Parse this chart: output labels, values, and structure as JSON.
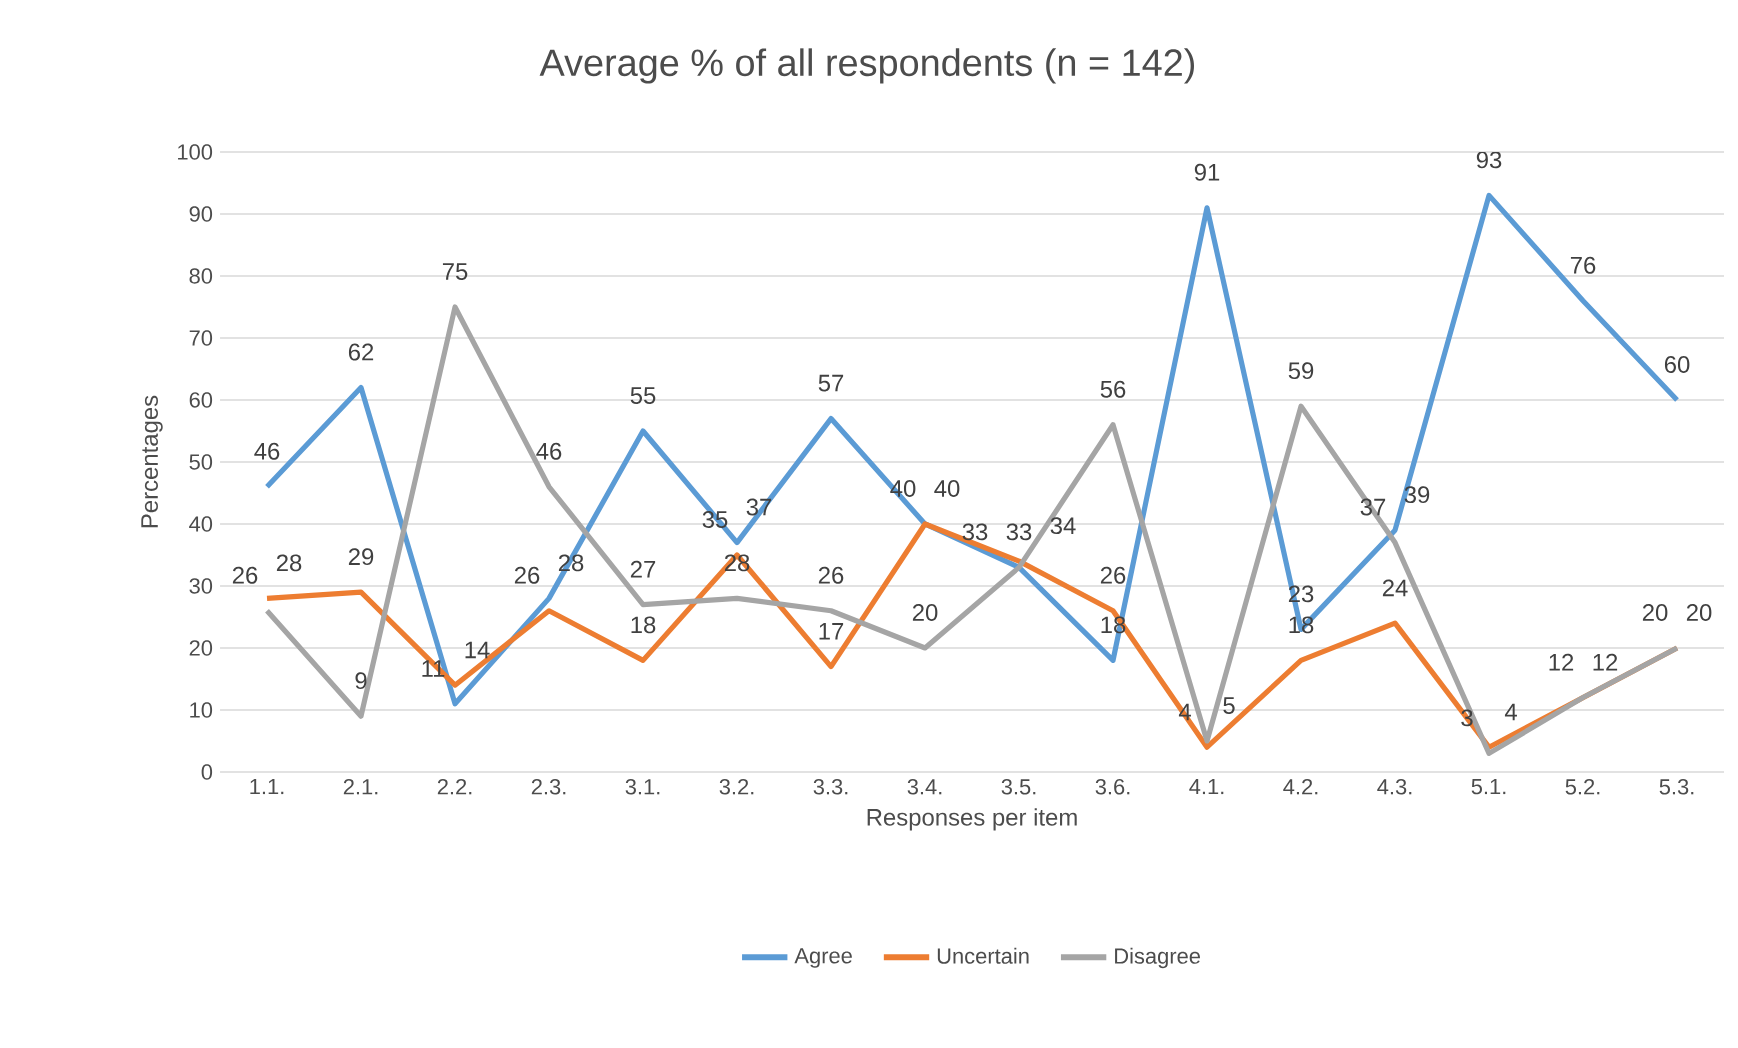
{
  "chart_data": {
    "type": "line",
    "title": "Average % of all respondents (n = 142)",
    "xlabel": "Responses per item",
    "ylabel": "Percentages",
    "categories": [
      "1.1.",
      "2.1.",
      "2.2.",
      "2.3.",
      "3.1.",
      "3.2.",
      "3.3.",
      "3.4.",
      "3.5.",
      "3.6.",
      "4.1.",
      "4.2.",
      "4.3.",
      "5.1.",
      "5.2.",
      "5.3."
    ],
    "series": [
      {
        "name": "Agree",
        "color": "#5b9bd5",
        "values": [
          46,
          62,
          11,
          28,
          55,
          37,
          57,
          40,
          33,
          18,
          91,
          23,
          39,
          93,
          76,
          60
        ]
      },
      {
        "name": "Uncertain",
        "color": "#ed7d31",
        "values": [
          28,
          29,
          14,
          26,
          18,
          35,
          17,
          40,
          34,
          26,
          4,
          18,
          24,
          4,
          12,
          20
        ]
      },
      {
        "name": "Disagree",
        "color": "#a5a5a5",
        "values": [
          26,
          9,
          75,
          46,
          27,
          28,
          26,
          20,
          33,
          56,
          5,
          59,
          37,
          3,
          12,
          20
        ]
      }
    ],
    "ylim": [
      0,
      100
    ],
    "yticks": [
      0,
      10,
      20,
      30,
      40,
      50,
      60,
      70,
      80,
      90,
      100
    ],
    "grid": "y",
    "legend": "bottom",
    "data_labels": true,
    "marker": "none",
    "line_style": "solid"
  }
}
